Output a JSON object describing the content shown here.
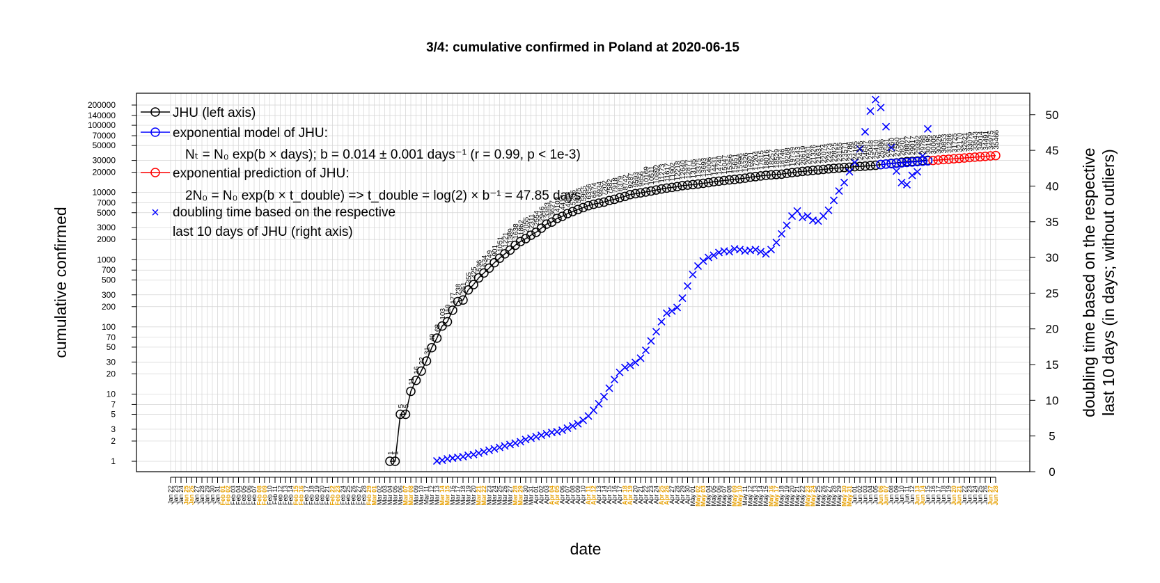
{
  "chart_data": {
    "type": "line",
    "title": "3/4: cumulative confirmed in Poland at 2020-06-15",
    "xlabel": "date",
    "ylabel_left": "cumulative confirmed",
    "ylabel_right_line1": "doubling time based on the respective",
    "ylabel_right_line2": "last 10 days (in days; without outliers)",
    "x_range": [
      "2020-01-22",
      "2020-06-28"
    ],
    "y_left_scale": "log",
    "y_left_range": [
      0.7,
      300000
    ],
    "y_left_ticks": [
      1,
      2,
      3,
      5,
      7,
      10,
      20,
      30,
      50,
      70,
      100,
      200,
      300,
      500,
      700,
      1000,
      2000,
      3000,
      5000,
      7000,
      10000,
      20000,
      30000,
      50000,
      70000,
      100000,
      140000,
      200000
    ],
    "y_right_range": [
      0,
      53
    ],
    "y_right_ticks": [
      0,
      5,
      10,
      15,
      20,
      25,
      30,
      35,
      40,
      45,
      50
    ],
    "grid": true,
    "legend_position": "top-left",
    "colors": {
      "jhu": "#000000",
      "model": "#0000ff",
      "prediction": "#ff0000",
      "doubling": "#0000ff",
      "weekend_tick": "#e69f00",
      "grid": "#d3d3d3"
    },
    "x_tick_labels": [
      "Jan 22",
      "Jan 23",
      "Jan 24",
      "Jan 25",
      "Jan 26",
      "Jan 27",
      "Jan 28",
      "Jan 29",
      "Jan 30",
      "Jan 31",
      "Feb 01",
      "Feb 02",
      "Feb 03",
      "Feb 04",
      "Feb 05",
      "Feb 06",
      "Feb 07",
      "Feb 08",
      "Feb 09",
      "Feb 10",
      "Feb 11",
      "Feb 12",
      "Feb 13",
      "Feb 14",
      "Feb 15",
      "Feb 16",
      "Feb 17",
      "Feb 18",
      "Feb 19",
      "Feb 20",
      "Feb 21",
      "Feb 22",
      "Feb 23",
      "Feb 24",
      "Feb 25",
      "Feb 26",
      "Feb 27",
      "Feb 28",
      "Feb 29",
      "Mar 01",
      "Mar 02",
      "Mar 03",
      "Mar 04",
      "Mar 05",
      "Mar 06",
      "Mar 07",
      "Mar 08",
      "Mar 09",
      "Mar 10",
      "Mar 11",
      "Mar 12",
      "Mar 13",
      "Mar 14",
      "Mar 15",
      "Mar 16",
      "Mar 17",
      "Mar 18",
      "Mar 19",
      "Mar 20",
      "Mar 21",
      "Mar 22",
      "Mar 23",
      "Mar 24",
      "Mar 25",
      "Mar 26",
      "Mar 27",
      "Mar 28",
      "Mar 29",
      "Mar 30",
      "Mar 31",
      "Apr 01",
      "Apr 02",
      "Apr 03",
      "Apr 04",
      "Apr 05",
      "Apr 06",
      "Apr 07",
      "Apr 08",
      "Apr 09",
      "Apr 10",
      "Apr 11",
      "Apr 12",
      "Apr 13",
      "Apr 14",
      "Apr 15",
      "Apr 16",
      "Apr 17",
      "Apr 18",
      "Apr 19",
      "Apr 20",
      "Apr 21",
      "Apr 22",
      "Apr 23",
      "Apr 24",
      "Apr 25",
      "Apr 26",
      "Apr 27",
      "Apr 28",
      "Apr 29",
      "Apr 30",
      "May 01",
      "May 02",
      "May 03",
      "May 04",
      "May 05",
      "May 06",
      "May 07",
      "May 08",
      "May 09",
      "May 10",
      "May 11",
      "May 12",
      "May 13",
      "May 14",
      "May 15",
      "May 16",
      "May 17",
      "May 18",
      "May 19",
      "May 20",
      "May 21",
      "May 22",
      "May 23",
      "May 24",
      "May 25",
      "May 26",
      "May 27",
      "May 28",
      "May 29",
      "May 30",
      "May 31",
      "Jun 01",
      "Jun 02",
      "Jun 03",
      "Jun 04",
      "Jun 05",
      "Jun 06",
      "Jun 07",
      "Jun 08",
      "Jun 09",
      "Jun 10",
      "Jun 11",
      "Jun 12",
      "Jun 13",
      "Jun 14",
      "Jun 15",
      "Jun 16",
      "Jun 17",
      "Jun 18",
      "Jun 19",
      "Jun 20",
      "Jun 21",
      "Jun 22",
      "Jun 23",
      "Jun 24",
      "Jun 25",
      "Jun 26",
      "Jun 27",
      "Jun 28"
    ],
    "legend": {
      "jhu": "JHU (left axis)",
      "model": "exponential model of JHU:",
      "model_formula": "Nₜ = N₀ exp(b × days); b = 0.014 ± 0.001 days⁻¹ (r = 0.99, p < 1e-3)",
      "prediction": "exponential prediction of JHU:",
      "prediction_formula": "2N₀ = N₀ exp(b × t_double) => t_double = log(2) × b⁻¹ = 47.85 days",
      "doubling_line1": "doubling time based on the respective",
      "doubling_line2": "last 10 days of JHU (right axis)"
    },
    "series": [
      {
        "name": "JHU (left axis)",
        "axis": "left",
        "x": [
          "2020-03-04",
          "2020-03-05",
          "2020-03-06",
          "2020-03-07",
          "2020-03-08",
          "2020-03-09",
          "2020-03-10",
          "2020-03-11",
          "2020-03-12",
          "2020-03-13",
          "2020-03-14",
          "2020-03-15",
          "2020-03-16",
          "2020-03-17",
          "2020-03-18",
          "2020-03-19",
          "2020-03-20",
          "2020-03-21",
          "2020-03-22",
          "2020-03-23",
          "2020-03-24",
          "2020-03-25",
          "2020-03-26",
          "2020-03-27",
          "2020-03-28",
          "2020-03-29",
          "2020-03-30",
          "2020-03-31",
          "2020-04-01",
          "2020-04-02",
          "2020-04-03",
          "2020-04-04",
          "2020-04-05",
          "2020-04-06",
          "2020-04-07",
          "2020-04-08",
          "2020-04-09",
          "2020-04-10",
          "2020-04-11",
          "2020-04-12",
          "2020-04-13",
          "2020-04-14",
          "2020-04-15",
          "2020-04-16",
          "2020-04-17",
          "2020-04-18",
          "2020-04-19",
          "2020-04-20",
          "2020-04-21",
          "2020-04-22",
          "2020-04-23",
          "2020-04-24",
          "2020-04-25",
          "2020-04-26",
          "2020-04-27",
          "2020-04-28",
          "2020-04-29",
          "2020-04-30",
          "2020-05-01",
          "2020-05-02",
          "2020-05-03",
          "2020-05-04",
          "2020-05-05",
          "2020-05-06",
          "2020-05-07",
          "2020-05-08",
          "2020-05-09",
          "2020-05-10",
          "2020-05-11",
          "2020-05-12",
          "2020-05-13",
          "2020-05-14",
          "2020-05-15",
          "2020-05-16",
          "2020-05-17",
          "2020-05-18",
          "2020-05-19",
          "2020-05-20",
          "2020-05-21",
          "2020-05-22",
          "2020-05-23",
          "2020-05-24",
          "2020-05-25",
          "2020-05-26",
          "2020-05-27",
          "2020-05-28",
          "2020-05-29",
          "2020-05-30",
          "2020-05-31",
          "2020-06-01",
          "2020-06-02",
          "2020-06-03",
          "2020-06-04",
          "2020-06-05",
          "2020-06-06",
          "2020-06-07",
          "2020-06-08",
          "2020-06-09",
          "2020-06-10",
          "2020-06-11",
          "2020-06-12",
          "2020-06-13",
          "2020-06-14",
          "2020-06-15"
        ],
        "values": [
          1,
          1,
          5,
          5,
          11,
          16,
          22,
          31,
          49,
          68,
          103,
          119,
          177,
          238,
          251,
          355,
          425,
          536,
          634,
          749,
          901,
          1051,
          1221,
          1389,
          1638,
          1862,
          2055,
          2311,
          2554,
          2946,
          3383,
          3627,
          4102,
          4413,
          4848,
          5205,
          5575,
          5955,
          6356,
          6674,
          6934,
          7202,
          7582,
          7918,
          8379,
          8742,
          9287,
          9593,
          9856,
          10169,
          10511,
          10892,
          11273,
          11617,
          11902,
          12218,
          12640,
          12877,
          13105,
          13375,
          13693,
          14006,
          14431,
          14740,
          15047,
          15366,
          15651,
          15996,
          16326,
          16921,
          17204,
          17615,
          18016,
          18257,
          18529,
          18746,
          19268,
          19739,
          20143,
          20619,
          20931,
          21326,
          21631,
          22074,
          22473,
          22825,
          23155,
          23571,
          23786,
          24165,
          24395,
          24687,
          25048,
          25410,
          25986,
          26561,
          27160,
          27560,
          28201,
          28827,
          29017,
          29392,
          29788,
          30195
        ]
      },
      {
        "name": "exponential model of JHU:",
        "axis": "left",
        "x": [
          "2020-06-06",
          "2020-06-07",
          "2020-06-08",
          "2020-06-09",
          "2020-06-10",
          "2020-06-11",
          "2020-06-12",
          "2020-06-13",
          "2020-06-14",
          "2020-06-15"
        ],
        "values": [
          26100,
          26470,
          26840,
          27220,
          27600,
          27990,
          28380,
          28780,
          29180,
          29590
        ]
      },
      {
        "name": "exponential prediction of JHU:",
        "axis": "left",
        "x": [
          "2020-06-16",
          "2020-06-17",
          "2020-06-18",
          "2020-06-19",
          "2020-06-20",
          "2020-06-21",
          "2020-06-22",
          "2020-06-23",
          "2020-06-24",
          "2020-06-25",
          "2020-06-26",
          "2020-06-27",
          "2020-06-28"
        ],
        "values": [
          30005,
          30426,
          30853,
          31286,
          31725,
          32170,
          32621,
          33079,
          33543,
          34014,
          34491,
          34975,
          35466
        ]
      },
      {
        "name": "doubling time based on the respective last 10 days of JHU (right axis)",
        "axis": "right",
        "x": [
          "2020-03-13",
          "2020-03-14",
          "2020-03-15",
          "2020-03-16",
          "2020-03-17",
          "2020-03-18",
          "2020-03-19",
          "2020-03-20",
          "2020-03-21",
          "2020-03-22",
          "2020-03-23",
          "2020-03-24",
          "2020-03-25",
          "2020-03-26",
          "2020-03-27",
          "2020-03-28",
          "2020-03-29",
          "2020-03-30",
          "2020-03-31",
          "2020-04-01",
          "2020-04-02",
          "2020-04-03",
          "2020-04-04",
          "2020-04-05",
          "2020-04-06",
          "2020-04-07",
          "2020-04-08",
          "2020-04-09",
          "2020-04-10",
          "2020-04-11",
          "2020-04-12",
          "2020-04-13",
          "2020-04-14",
          "2020-04-15",
          "2020-04-16",
          "2020-04-17",
          "2020-04-18",
          "2020-04-19",
          "2020-04-20",
          "2020-04-21",
          "2020-04-22",
          "2020-04-23",
          "2020-04-24",
          "2020-04-25",
          "2020-04-26",
          "2020-04-27",
          "2020-04-28",
          "2020-04-29",
          "2020-04-30",
          "2020-05-01",
          "2020-05-02",
          "2020-05-03",
          "2020-05-04",
          "2020-05-05",
          "2020-05-06",
          "2020-05-07",
          "2020-05-08",
          "2020-05-09",
          "2020-05-10",
          "2020-05-11",
          "2020-05-12",
          "2020-05-13",
          "2020-05-14",
          "2020-05-15",
          "2020-05-16",
          "2020-05-17",
          "2020-05-18",
          "2020-05-19",
          "2020-05-20",
          "2020-05-21",
          "2020-05-22",
          "2020-05-23",
          "2020-05-24",
          "2020-05-25",
          "2020-05-26",
          "2020-05-27",
          "2020-05-28",
          "2020-05-29",
          "2020-05-30",
          "2020-05-31",
          "2020-06-01",
          "2020-06-02",
          "2020-06-03",
          "2020-06-04",
          "2020-06-05",
          "2020-06-06",
          "2020-06-07",
          "2020-06-08",
          "2020-06-09",
          "2020-06-10",
          "2020-06-11",
          "2020-06-12",
          "2020-06-13",
          "2020-06-14",
          "2020-06-15"
        ],
        "values": [
          1.5,
          1.6,
          1.8,
          1.9,
          2.0,
          2.1,
          2.3,
          2.4,
          2.6,
          2.8,
          3.0,
          3.2,
          3.4,
          3.6,
          3.8,
          4.0,
          4.2,
          4.5,
          4.7,
          4.9,
          5.1,
          5.3,
          5.5,
          5.6,
          5.8,
          6.1,
          6.4,
          6.7,
          7.2,
          7.8,
          8.6,
          9.5,
          10.5,
          11.7,
          12.9,
          13.9,
          14.6,
          14.9,
          15.3,
          15.9,
          17.0,
          18.3,
          19.6,
          21.0,
          22.2,
          22.5,
          23.0,
          24.3,
          26.0,
          27.6,
          28.8,
          29.5,
          30.0,
          30.3,
          30.7,
          30.9,
          30.8,
          31.2,
          31.1,
          30.9,
          31.0,
          31.1,
          30.8,
          30.5,
          31.1,
          32.1,
          33.3,
          34.5,
          35.8,
          36.5,
          35.6,
          35.8,
          35.2,
          35.1,
          35.8,
          36.6,
          38.0,
          39.3,
          40.5,
          42.0,
          43.3,
          45.2,
          47.6,
          50.5,
          52.1,
          51.0,
          48.3,
          45.4,
          42.1,
          40.5,
          40.2,
          41.5,
          42.0,
          44.2,
          48.0
        ]
      }
    ]
  }
}
